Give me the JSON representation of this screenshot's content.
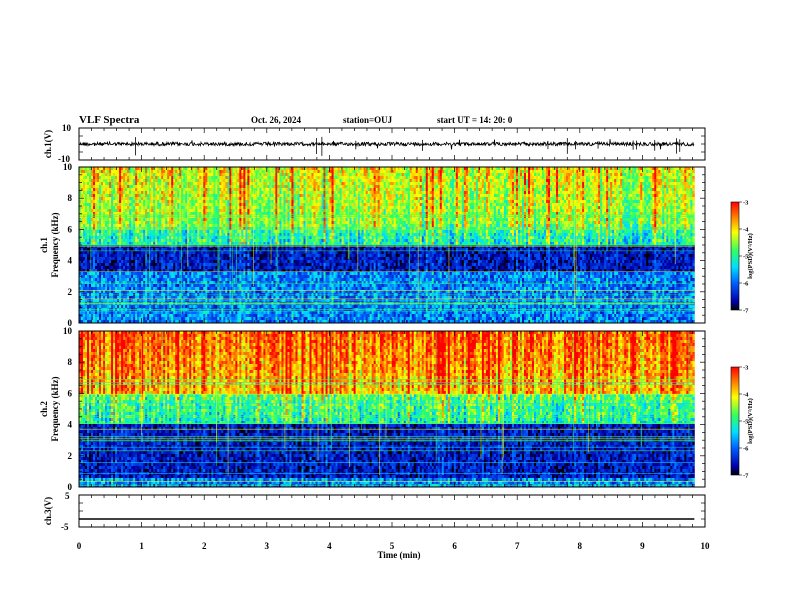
{
  "header": {
    "title": "VLF Spectra",
    "date": "Oct. 26, 2024",
    "station": "station=OUJ",
    "start_ut": "start  UT  =   14: 20: 0"
  },
  "chart_data": [
    {
      "type": "line",
      "panel": "ch1-waveform",
      "ylabel": "ch.1(V)",
      "ytick_labels": [
        "10",
        "-10"
      ],
      "ylim": [
        -10,
        10
      ],
      "xlim": [
        0,
        10
      ],
      "data_extent_min": [
        0,
        9.83
      ],
      "baseline_v": 0,
      "color": "#000000"
    },
    {
      "type": "heatmap",
      "panel": "ch1-spectrogram",
      "ylabel_line1": "ch.1",
      "ylabel_line2": "Frequency (kHz)",
      "yticks": [
        0,
        2,
        4,
        6,
        8,
        10
      ],
      "ylim": [
        0,
        10
      ],
      "xlim": [
        0,
        10
      ],
      "data_extent_min": [
        0,
        9.83
      ],
      "background_dark_band_khz": [
        3.2,
        5.0
      ],
      "upper_band_level": "medium",
      "colorbar": {
        "label": "log(PSD)(V²/Hz)",
        "ticks": [
          "-3",
          "-4",
          "-5",
          "-6",
          "-7"
        ],
        "range": [
          -7,
          -3
        ]
      }
    },
    {
      "type": "heatmap",
      "panel": "ch2-spectrogram",
      "ylabel_line1": "ch.2",
      "ylabel_line2": "Frequency (kHz)",
      "yticks": [
        0,
        2,
        4,
        6,
        8,
        10
      ],
      "ylim": [
        0,
        10
      ],
      "xlim": [
        0,
        10
      ],
      "data_extent_min": [
        0,
        9.83
      ],
      "background_dark_band_khz": [
        0.5,
        4.0
      ],
      "upper_band_level": "high",
      "colorbar": {
        "label": "log(PSD)(V²/Hz)",
        "ticks": [
          "-3",
          "-4",
          "-5",
          "-6",
          "-7"
        ],
        "range": [
          -7,
          -3
        ]
      }
    },
    {
      "type": "line",
      "panel": "ch3-waveform",
      "ylabel": "ch.3(V)",
      "ytick_labels": [
        "5",
        "-5"
      ],
      "ylim": [
        -5,
        5
      ],
      "xlim": [
        0,
        10
      ],
      "data_extent_min": [
        0,
        9.83
      ],
      "baseline_v": -2.5,
      "color": "#000000"
    }
  ],
  "xaxis": {
    "label": "Time  (min)",
    "ticks": [
      "0",
      "1",
      "2",
      "3",
      "4",
      "5",
      "6",
      "7",
      "8",
      "9",
      "10"
    ]
  }
}
